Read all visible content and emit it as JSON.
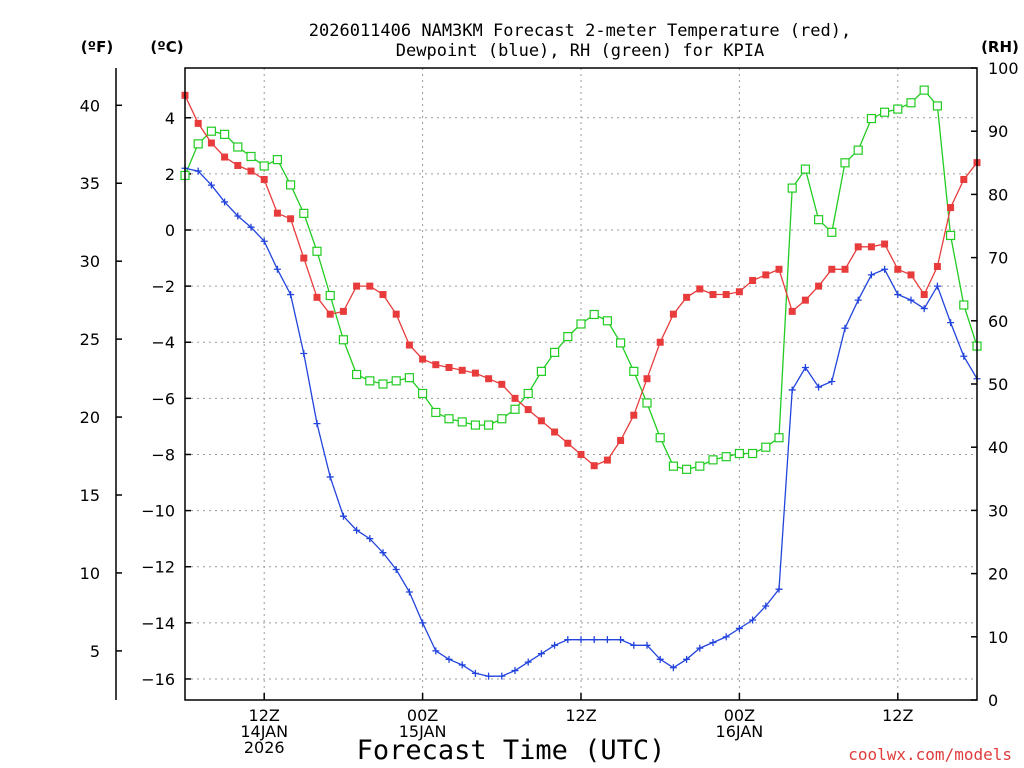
{
  "chart_data": {
    "type": "line",
    "title_line1": "2026011406 NAM3KM Forecast 2-meter Temperature (red),",
    "title_line2": "Dewpoint (blue), RH (green) for KPIA",
    "unit_f": "(ºF)",
    "unit_c": "(ºC)",
    "unit_rh": "(RH)",
    "xlabel": "Forecast Time (UTC)",
    "credit": "coolwx.com/models",
    "x_range_hours": [
      0,
      60
    ],
    "x_ticks": [
      {
        "hour": 6,
        "lines": [
          "12Z",
          "14JAN",
          "2026"
        ]
      },
      {
        "hour": 18,
        "lines": [
          "00Z",
          "15JAN"
        ]
      },
      {
        "hour": 30,
        "lines": [
          "12Z"
        ]
      },
      {
        "hour": 42,
        "lines": [
          "00Z",
          "16JAN"
        ]
      },
      {
        "hour": 54,
        "lines": [
          "12Z"
        ]
      }
    ],
    "celsius_axis": {
      "min": -17,
      "max": 5.5,
      "ticks": [
        4,
        2,
        0,
        -2,
        -4,
        -6,
        -8,
        -10,
        -12,
        -14,
        -16
      ]
    },
    "fahrenheit_ticks": [
      40,
      35,
      30,
      25,
      20,
      15,
      10,
      5
    ],
    "rh_axis": {
      "min": 0,
      "max": 100,
      "ticks": [
        100,
        90,
        80,
        70,
        60,
        50,
        40,
        30,
        20,
        10,
        0
      ]
    },
    "series": [
      {
        "name": "2-meter Temperature",
        "unit": "C",
        "color": "#e83c3c",
        "marker": "filled-square",
        "values": [
          4.8,
          3.8,
          3.1,
          2.6,
          2.3,
          2.1,
          1.8,
          0.6,
          0.4,
          -1.0,
          -2.4,
          -3.0,
          -2.9,
          -2.0,
          -2.0,
          -2.3,
          -3.0,
          -4.1,
          -4.6,
          -4.8,
          -4.9,
          -5.0,
          -5.1,
          -5.3,
          -5.5,
          -6.0,
          -6.4,
          -6.8,
          -7.2,
          -7.6,
          -8.0,
          -8.4,
          -8.2,
          -7.5,
          -6.6,
          -5.3,
          -4.0,
          -3.0,
          -2.4,
          -2.1,
          -2.3,
          -2.3,
          -2.2,
          -1.8,
          -1.6,
          -1.4,
          -2.9,
          -2.5,
          -2.0,
          -1.4,
          -1.4,
          -0.6,
          -0.6,
          -0.5,
          -1.4,
          -1.6,
          -2.3,
          -1.3,
          0.8,
          1.8,
          2.4
        ]
      },
      {
        "name": "Dewpoint",
        "unit": "C",
        "color": "#2244dd",
        "marker": "plus",
        "values": [
          2.2,
          2.1,
          1.6,
          1.0,
          0.5,
          0.1,
          -0.4,
          -1.4,
          -2.3,
          -4.4,
          -6.9,
          -8.8,
          -10.2,
          -10.7,
          -11.0,
          -11.5,
          -12.1,
          -12.9,
          -14.0,
          -15.0,
          -15.3,
          -15.5,
          -15.8,
          -15.9,
          -15.9,
          -15.7,
          -15.4,
          -15.1,
          -14.8,
          -14.6,
          -14.6,
          -14.6,
          -14.6,
          -14.6,
          -14.8,
          -14.8,
          -15.3,
          -15.6,
          -15.3,
          -14.9,
          -14.7,
          -14.5,
          -14.2,
          -13.9,
          -13.4,
          -12.8,
          -5.7,
          -4.9,
          -5.6,
          -5.4,
          -3.5,
          -2.5,
          -1.6,
          -1.4,
          -2.3,
          -2.5,
          -2.8,
          -2.0,
          -3.3,
          -4.5,
          -5.3
        ]
      },
      {
        "name": "Relative Humidity",
        "unit": "%",
        "color": "#22cc22",
        "marker": "open-square",
        "values": [
          83,
          88,
          90,
          89.5,
          87.5,
          86,
          84.5,
          85.5,
          81.5,
          77,
          71,
          64,
          57,
          51.5,
          50.5,
          50,
          50.5,
          51,
          48.5,
          45.5,
          44.5,
          44,
          43.5,
          43.5,
          44.5,
          46,
          48.5,
          52,
          55,
          57.5,
          59.5,
          61,
          60,
          56.5,
          52,
          47,
          41.5,
          37,
          36.5,
          37,
          38,
          38.5,
          39,
          39,
          40,
          41.5,
          81,
          84,
          76,
          74,
          85,
          87,
          92,
          93,
          93.5,
          94.5,
          96.5,
          94,
          73.5,
          62.5,
          56
        ]
      }
    ]
  }
}
